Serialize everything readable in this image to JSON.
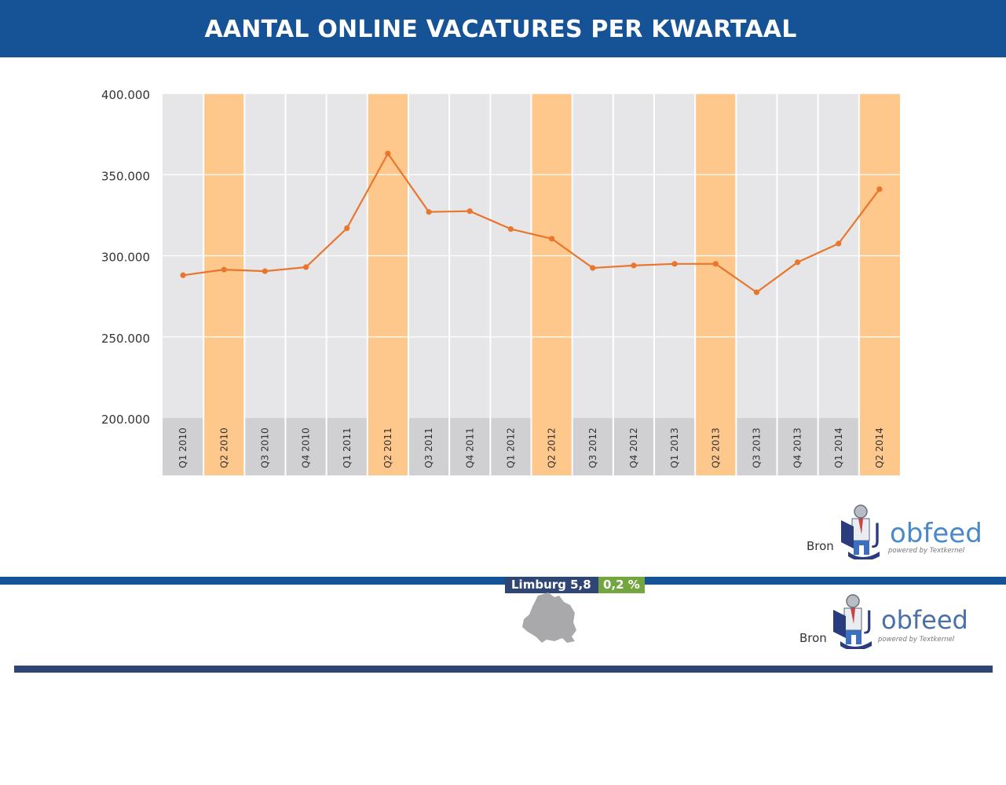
{
  "header": {
    "title": "AANTAL ONLINE VACATURES PER KWARTAAL"
  },
  "chart_data": {
    "type": "line",
    "title": "AANTAL ONLINE VACATURES PER KWARTAAL",
    "xlabel": "",
    "ylabel": "",
    "ylim": [
      200000,
      400000
    ],
    "yticks": [
      "400.000",
      "350.000",
      "300.000",
      "250.000",
      "200.000"
    ],
    "ytick_values": [
      400000,
      350000,
      300000,
      250000,
      200000
    ],
    "categories": [
      "Q1 2010",
      "Q2 2010",
      "Q3 2010",
      "Q4 2010",
      "Q1 2011",
      "Q2 2011",
      "Q3 2011",
      "Q4 2011",
      "Q1 2012",
      "Q2 2012",
      "Q3 2012",
      "Q4 2012",
      "Q1 2013",
      "Q2 2013",
      "Q3 2013",
      "Q4 2013",
      "Q1 2014",
      "Q2 2014"
    ],
    "highlighted": [
      "Q2 2010",
      "Q2 2011",
      "Q2 2012",
      "Q2 2013",
      "Q2 2014"
    ],
    "series": [
      {
        "values": [
          288000,
          291500,
          290500,
          293000,
          317000,
          363000,
          327000,
          327500,
          316500,
          310500,
          292500,
          294000,
          295000,
          295000,
          277500,
          296000,
          307500,
          341000
        ]
      }
    ],
    "grid": true,
    "colors": {
      "line": "#e8762c",
      "highlight": "#fec78b",
      "background": "#e6e6e8",
      "tick_band": "#d0d0d2"
    }
  },
  "source_top": {
    "label": "Bron",
    "logo_text_a": "J",
    "logo_text_b": "obfeed",
    "logo_sub": "powered by Textkernel"
  },
  "source_bottom": {
    "label": "Bron",
    "logo_text_a": "J",
    "logo_text_b": "obfeed",
    "logo_sub": "powered by Textkernel"
  },
  "region": {
    "label": "Limburg 5,8 %",
    "change": "0,2 %"
  },
  "colors": {
    "brand_blue": "#165296",
    "navy": "#2f4573",
    "green": "#74a63f"
  }
}
